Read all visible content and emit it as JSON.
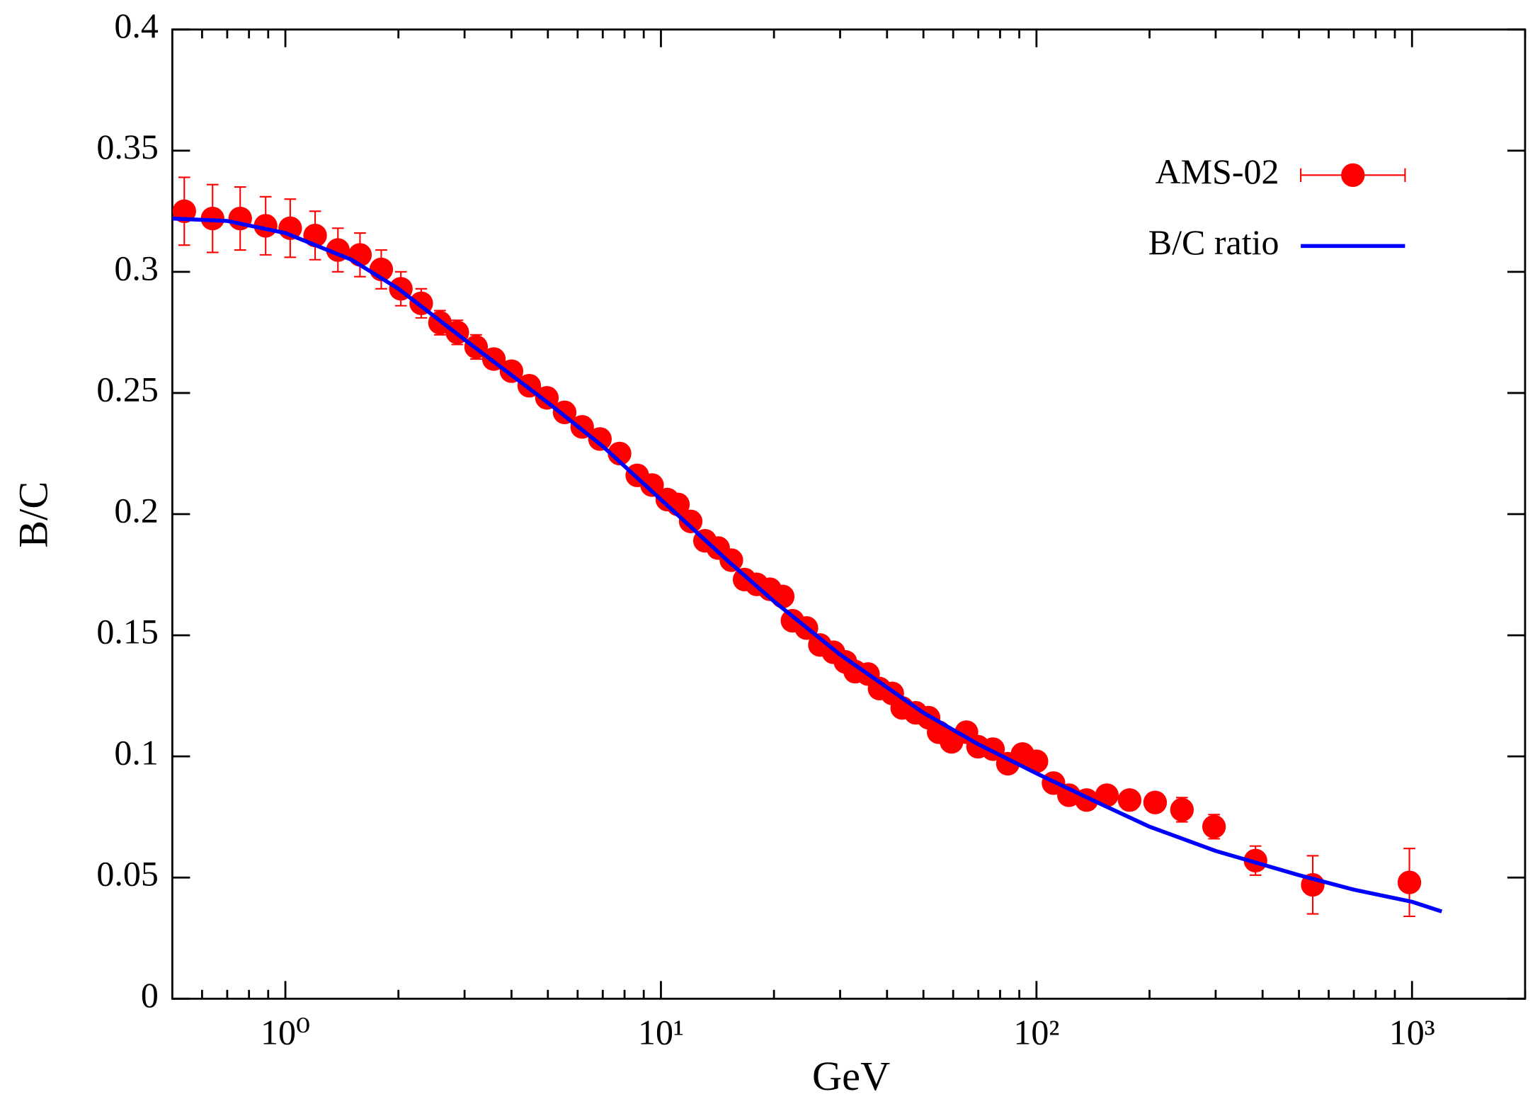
{
  "chart_data": {
    "type": "scatter",
    "xlabel": "GeV",
    "ylabel": "B/C",
    "xscale": "log",
    "xlim": [
      0.5,
      2000
    ],
    "ylim": [
      0,
      0.4
    ],
    "xticks": [
      {
        "value": 1,
        "label": "10⁰"
      },
      {
        "value": 10,
        "label": "10¹"
      },
      {
        "value": 100,
        "label": "10²"
      },
      {
        "value": 1000,
        "label": "10³"
      }
    ],
    "xminorticks": [
      0.6,
      0.7,
      0.8,
      0.9,
      2,
      3,
      4,
      5,
      6,
      7,
      8,
      9,
      20,
      30,
      40,
      50,
      60,
      70,
      80,
      90,
      200,
      300,
      400,
      500,
      600,
      700,
      800,
      900,
      2000
    ],
    "yticks": [
      0,
      0.05,
      0.1,
      0.15,
      0.2,
      0.25,
      0.3,
      0.35,
      0.4
    ],
    "legend": "upper right",
    "series": [
      {
        "name": "AMS-02",
        "type": "errorbar",
        "color": "#ff0000",
        "x": [
          0.538,
          0.64,
          0.758,
          0.886,
          1.03,
          1.2,
          1.38,
          1.58,
          1.8,
          2.03,
          2.3,
          2.58,
          2.87,
          3.22,
          3.59,
          4.0,
          4.46,
          4.97,
          5.54,
          6.17,
          6.88,
          7.76,
          8.65,
          9.47,
          10.4,
          11.1,
          12.0,
          13.1,
          14.2,
          15.4,
          16.7,
          18.0,
          19.5,
          21.1,
          22.4,
          24.4,
          26.5,
          28.8,
          31.0,
          32.9,
          35.6,
          38.2,
          41.3,
          43.9,
          47.7,
          51.6,
          54.9,
          59.4,
          65.1,
          69.9,
          76.6,
          83.9,
          91.8,
          100,
          111,
          122,
          136,
          154,
          177,
          207,
          244,
          297,
          383,
          544,
          984
        ],
        "values": [
          0.325,
          0.322,
          0.322,
          0.319,
          0.318,
          0.315,
          0.309,
          0.307,
          0.301,
          0.293,
          0.287,
          0.279,
          0.275,
          0.269,
          0.264,
          0.259,
          0.253,
          0.248,
          0.242,
          0.236,
          0.231,
          0.225,
          0.216,
          0.212,
          0.206,
          0.204,
          0.197,
          0.189,
          0.186,
          0.181,
          0.173,
          0.171,
          0.169,
          0.166,
          0.156,
          0.153,
          0.146,
          0.143,
          0.139,
          0.135,
          0.134,
          0.128,
          0.126,
          0.12,
          0.118,
          0.116,
          0.11,
          0.106,
          0.11,
          0.104,
          0.103,
          0.097,
          0.101,
          0.098,
          0.089,
          0.084,
          0.082,
          0.084,
          0.082,
          0.081,
          0.078,
          0.071,
          0.057,
          0.047,
          0.048
        ],
        "errors": [
          0.014,
          0.014,
          0.013,
          0.012,
          0.012,
          0.01,
          0.009,
          0.009,
          0.008,
          0.007,
          0.006,
          0.005,
          0.005,
          0.005,
          0.004,
          0.004,
          0.004,
          0.004,
          0.004,
          0.004,
          0.004,
          0.004,
          0.004,
          0.004,
          0.004,
          0.004,
          0.004,
          0.004,
          0.004,
          0.004,
          0.004,
          0.004,
          0.004,
          0.004,
          0.003,
          0.003,
          0.003,
          0.003,
          0.003,
          0.003,
          0.003,
          0.003,
          0.003,
          0.003,
          0.003,
          0.003,
          0.003,
          0.003,
          0.003,
          0.003,
          0.003,
          0.003,
          0.003,
          0.003,
          0.003,
          0.003,
          0.003,
          0.003,
          0.004,
          0.004,
          0.005,
          0.005,
          0.006,
          0.012,
          0.014
        ]
      },
      {
        "name": "B/C ratio",
        "type": "line",
        "color": "#0000ff",
        "x": [
          0.5,
          0.7,
          1.0,
          1.5,
          2,
          3,
          5,
          7,
          10,
          15,
          20,
          30,
          50,
          70,
          100,
          150,
          200,
          300,
          500,
          700,
          1000,
          1200
        ],
        "values": [
          0.322,
          0.321,
          0.316,
          0.305,
          0.293,
          0.272,
          0.246,
          0.228,
          0.206,
          0.181,
          0.164,
          0.142,
          0.118,
          0.105,
          0.093,
          0.08,
          0.071,
          0.061,
          0.051,
          0.045,
          0.04,
          0.036
        ]
      }
    ]
  }
}
